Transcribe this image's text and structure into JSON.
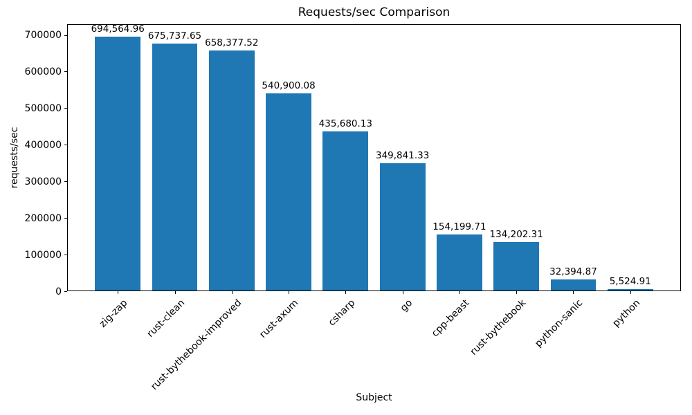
{
  "chart_data": {
    "type": "bar",
    "title": "Requests/sec Comparison",
    "xlabel": "Subject",
    "ylabel": "requests/sec",
    "categories": [
      "zig-zap",
      "rust-clean",
      "rust-bythebook-improved",
      "rust-axum",
      "csharp",
      "go",
      "cpp-beast",
      "rust-bythebook",
      "python-sanic",
      "python"
    ],
    "values": [
      694564.96,
      675737.65,
      658377.52,
      540900.08,
      435680.13,
      349841.33,
      154199.71,
      134202.31,
      32394.87,
      5524.91
    ],
    "value_labels": [
      "694,564.96",
      "675,737.65",
      "658,377.52",
      "540,900.08",
      "435,680.13",
      "349,841.33",
      "154,199.71",
      "134,202.31",
      "32,394.87",
      "5,524.91"
    ],
    "yticks": [
      0,
      100000,
      200000,
      300000,
      400000,
      500000,
      600000,
      700000
    ],
    "ylim": [
      0,
      729293
    ],
    "bar_color": "#1f77b4",
    "text_color": "#000000",
    "grid": false,
    "legend": "none"
  }
}
